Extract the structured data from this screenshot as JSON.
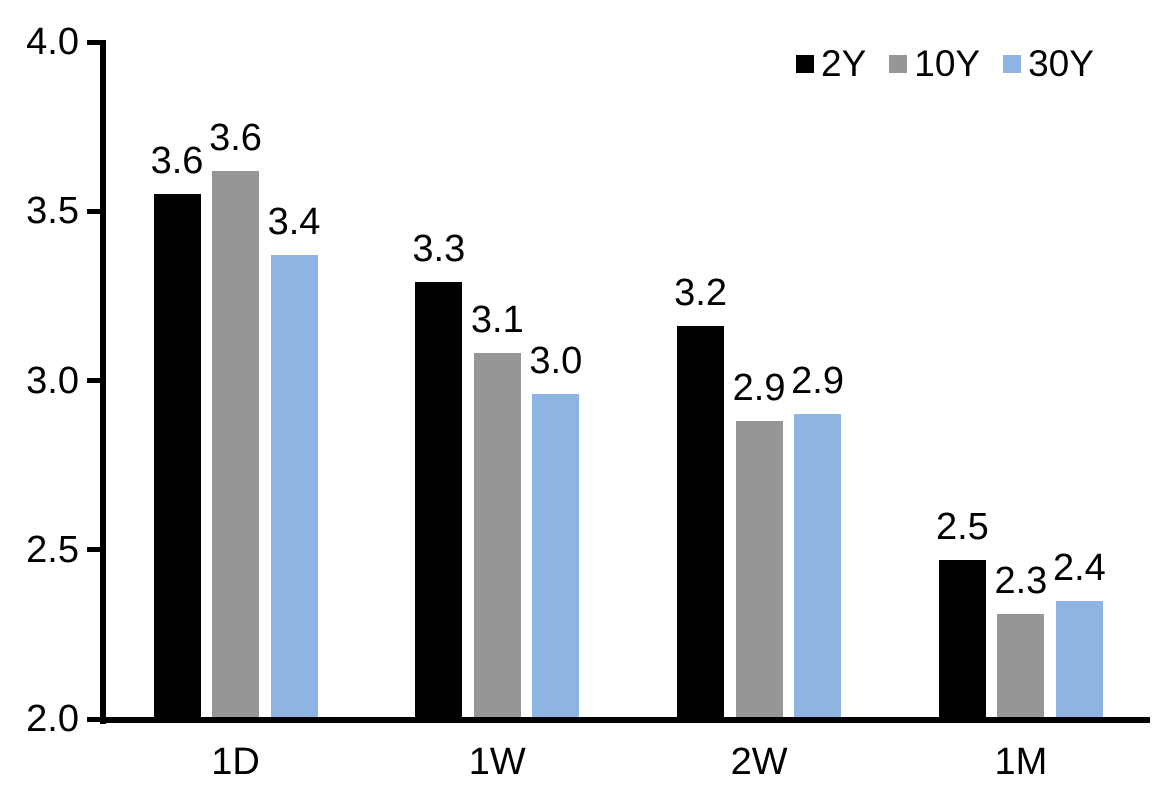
{
  "chart_data": {
    "type": "bar",
    "title": "",
    "categories": [
      "1D",
      "1W",
      "2W",
      "1M"
    ],
    "series": [
      {
        "name": "2Y",
        "color": "#000000",
        "values": [
          3.55,
          3.29,
          3.16,
          2.47
        ],
        "data_labels": [
          "3.6",
          "3.3",
          "3.2",
          "2.5"
        ]
      },
      {
        "name": "10Y",
        "color": "#969696",
        "values": [
          3.62,
          3.08,
          2.88,
          2.31
        ],
        "data_labels": [
          "3.6",
          "3.1",
          "2.9",
          "2.3"
        ]
      },
      {
        "name": "30Y",
        "color": "#8DB4E2",
        "values": [
          3.37,
          2.96,
          2.9,
          2.35
        ],
        "data_labels": [
          "3.4",
          "3.0",
          "2.9",
          "2.4"
        ]
      }
    ],
    "ylim": [
      2.0,
      4.0
    ],
    "ytick_values": [
      2.0,
      2.5,
      3.0,
      3.5,
      4.0
    ],
    "ytick_labels": [
      "2.0",
      "2.5",
      "3.0",
      "3.5",
      "4.0"
    ],
    "grid": false,
    "legend": {
      "position": "top-right",
      "entries": [
        "2Y",
        "10Y",
        "30Y"
      ]
    },
    "axis_color": "#000000",
    "text_color": "#000000",
    "background_color": "#FFFFFF"
  }
}
